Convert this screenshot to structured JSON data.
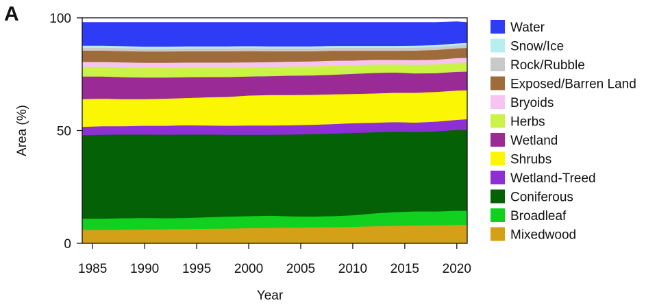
{
  "panel_label": "A",
  "chart_data": {
    "type": "area",
    "stacked": true,
    "x": [
      1984,
      1986,
      1988,
      1990,
      1992,
      1994,
      1996,
      1998,
      2000,
      2002,
      2004,
      2006,
      2008,
      2010,
      2012,
      2014,
      2016,
      2018,
      2020,
      2021
    ],
    "xlabel": "Year",
    "ylabel": "Area (%)",
    "xlim": [
      1984,
      2021
    ],
    "ylim": [
      0,
      100
    ],
    "x_ticks": [
      "1985",
      "1990",
      "1995",
      "2000",
      "2005",
      "2010",
      "2015",
      "2020"
    ],
    "y_ticks": [
      "0",
      "50",
      "100"
    ],
    "grid": false,
    "legend_position": "right",
    "series": [
      {
        "name": "Mixedwood",
        "color": "#d4a017",
        "values": [
          6.0,
          6.0,
          6.1,
          6.2,
          6.3,
          6.4,
          6.5,
          6.6,
          6.8,
          6.9,
          7.0,
          7.1,
          7.2,
          7.4,
          7.6,
          7.8,
          8.0,
          8.1,
          8.2,
          8.2
        ]
      },
      {
        "name": "Broadleaf",
        "color": "#12d01f",
        "values": [
          5.0,
          5.0,
          5.1,
          5.1,
          4.9,
          4.9,
          5.1,
          5.3,
          5.3,
          5.4,
          5.0,
          4.8,
          4.9,
          5.1,
          5.7,
          6.1,
          6.2,
          6.1,
          6.3,
          6.3
        ]
      },
      {
        "name": "Coniferous",
        "color": "#056105",
        "values": [
          37.0,
          37.2,
          37.1,
          37.0,
          37.0,
          37.0,
          36.7,
          36.3,
          36.1,
          35.9,
          36.3,
          36.6,
          36.6,
          36.5,
          36.0,
          35.6,
          35.2,
          35.5,
          35.8,
          35.8
        ]
      },
      {
        "name": "Wetland-Treed",
        "color": "#8e2fd6",
        "values": [
          3.7,
          3.8,
          3.7,
          3.9,
          4.0,
          4.1,
          4.0,
          4.0,
          4.1,
          4.1,
          4.1,
          4.1,
          4.2,
          4.3,
          4.2,
          4.3,
          4.2,
          4.3,
          4.5,
          4.8
        ]
      },
      {
        "name": "Shrubs",
        "color": "#fbf604",
        "values": [
          12.3,
          12.2,
          12.0,
          11.8,
          12.0,
          12.1,
          12.5,
          12.8,
          13.3,
          13.5,
          13.4,
          13.3,
          13.2,
          13.0,
          13.0,
          13.0,
          13.2,
          13.2,
          13.0,
          12.8
        ]
      },
      {
        "name": "Wetland",
        "color": "#9a2a96",
        "values": [
          10.0,
          9.8,
          9.7,
          9.6,
          9.4,
          9.2,
          9.0,
          8.8,
          8.4,
          8.4,
          8.6,
          8.6,
          8.7,
          8.9,
          9.1,
          9.0,
          8.6,
          8.3,
          8.3,
          8.3
        ]
      },
      {
        "name": "Herbs",
        "color": "#cbf347",
        "values": [
          4.3,
          4.3,
          4.4,
          4.3,
          4.3,
          4.3,
          4.2,
          4.2,
          4.1,
          4.0,
          4.0,
          4.0,
          4.0,
          3.8,
          3.7,
          3.6,
          3.8,
          3.9,
          4.0,
          4.0
        ]
      },
      {
        "name": "Bryoids",
        "color": "#f7c4f1",
        "values": [
          2.2,
          2.2,
          2.2,
          2.2,
          2.2,
          2.2,
          2.2,
          2.2,
          2.2,
          2.2,
          2.2,
          2.2,
          2.2,
          2.1,
          2.1,
          2.0,
          2.1,
          2.1,
          2.1,
          2.1
        ]
      },
      {
        "name": "Exposed/Barren Land",
        "color": "#9e6b3a",
        "values": [
          5.0,
          5.0,
          5.0,
          5.0,
          5.0,
          5.0,
          5.0,
          5.0,
          5.0,
          4.8,
          4.6,
          4.5,
          4.4,
          4.3,
          4.0,
          4.0,
          4.2,
          4.3,
          4.3,
          4.4
        ]
      },
      {
        "name": "Rock/Rubble",
        "color": "#c9c9c9",
        "values": [
          1.3,
          1.3,
          1.3,
          1.3,
          1.3,
          1.3,
          1.3,
          1.3,
          1.3,
          1.3,
          1.3,
          1.3,
          1.3,
          1.3,
          1.3,
          1.3,
          1.3,
          1.3,
          1.3,
          1.3
        ]
      },
      {
        "name": "Snow/Ice",
        "color": "#b9eef0",
        "values": [
          0.9,
          0.9,
          0.9,
          0.9,
          0.9,
          0.9,
          0.9,
          0.9,
          0.9,
          0.9,
          0.9,
          0.9,
          0.9,
          0.9,
          0.9,
          0.9,
          0.9,
          0.9,
          0.9,
          0.9
        ]
      },
      {
        "name": "Water",
        "color": "#2f3cf5",
        "values": [
          10.3,
          10.3,
          10.5,
          10.7,
          10.7,
          10.6,
          10.6,
          10.6,
          10.5,
          10.6,
          10.6,
          10.6,
          10.4,
          10.4,
          10.4,
          10.4,
          10.3,
          10.0,
          9.6,
          9.1
        ]
      }
    ],
    "legend_order": [
      "Water",
      "Snow/Ice",
      "Rock/Rubble",
      "Exposed/Barren Land",
      "Bryoids",
      "Herbs",
      "Wetland",
      "Shrubs",
      "Wetland-Treed",
      "Coniferous",
      "Broadleaf",
      "Mixedwood"
    ]
  }
}
